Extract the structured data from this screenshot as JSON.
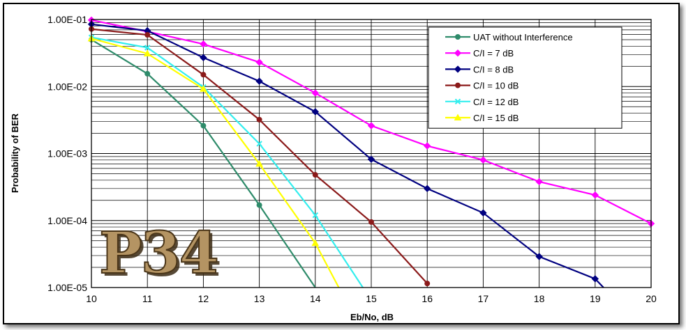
{
  "chart_data": {
    "type": "line",
    "xlabel": "Eb/No, dB",
    "ylabel": "Probability of BER",
    "xlim": [
      10,
      20
    ],
    "ylim": [
      1e-05,
      0.1
    ],
    "yscale": "log",
    "grid": true,
    "legend_position": "top-right",
    "x_ticks": [
      "10",
      "11",
      "12",
      "13",
      "14",
      "15",
      "16",
      "17",
      "18",
      "19",
      "20"
    ],
    "y_ticks": [
      "1.00E-05",
      "1.00E-04",
      "1.00E-03",
      "1.00E-02",
      "1.00E-01"
    ],
    "series": [
      {
        "name": "UAT without Interference",
        "color": "#2e8b6a",
        "marker": "circle",
        "x": [
          10,
          11,
          12,
          13,
          14
        ],
        "y": [
          0.05,
          0.0155,
          0.0026,
          0.00017,
          1e-05
        ]
      },
      {
        "name": "C/I = 7 dB",
        "color": "#ff00ff",
        "marker": "diamond",
        "x": [
          10,
          11,
          12,
          13,
          14,
          15,
          16,
          17,
          18,
          19,
          20
        ],
        "y": [
          0.098,
          0.066,
          0.043,
          0.023,
          0.008,
          0.0026,
          0.0013,
          0.0008,
          0.00038,
          0.00024,
          9e-05
        ]
      },
      {
        "name": "C/I = 8 dB",
        "color": "#000080",
        "marker": "diamond",
        "x": [
          10,
          11,
          12,
          13,
          14,
          15,
          16,
          17,
          18,
          19,
          19.15
        ],
        "y": [
          0.085,
          0.068,
          0.027,
          0.012,
          0.0042,
          0.00082,
          0.0003,
          0.00013,
          2.9e-05,
          1.35e-05,
          1e-05
        ]
      },
      {
        "name": "C/I = 10 dB",
        "color": "#8b1a1a",
        "marker": "circle",
        "x": [
          10,
          11,
          12,
          13,
          14,
          15,
          16
        ],
        "y": [
          0.072,
          0.059,
          0.015,
          0.0032,
          0.00048,
          9.5e-05,
          1.15e-05
        ]
      },
      {
        "name": "C/I = 12 dB",
        "color": "#33eeee",
        "marker": "x",
        "x": [
          10,
          11,
          12,
          13,
          14,
          14.85
        ],
        "y": [
          0.054,
          0.038,
          0.0098,
          0.0014,
          0.00012,
          1e-05
        ]
      },
      {
        "name": "C/I = 15 dB",
        "color": "#ffff00",
        "marker": "triangle",
        "x": [
          10,
          11,
          12,
          13,
          14,
          14.42
        ],
        "y": [
          0.052,
          0.031,
          0.0092,
          0.0007,
          4.6e-05,
          1e-05
        ]
      }
    ]
  },
  "watermark": {
    "text": "P34"
  }
}
